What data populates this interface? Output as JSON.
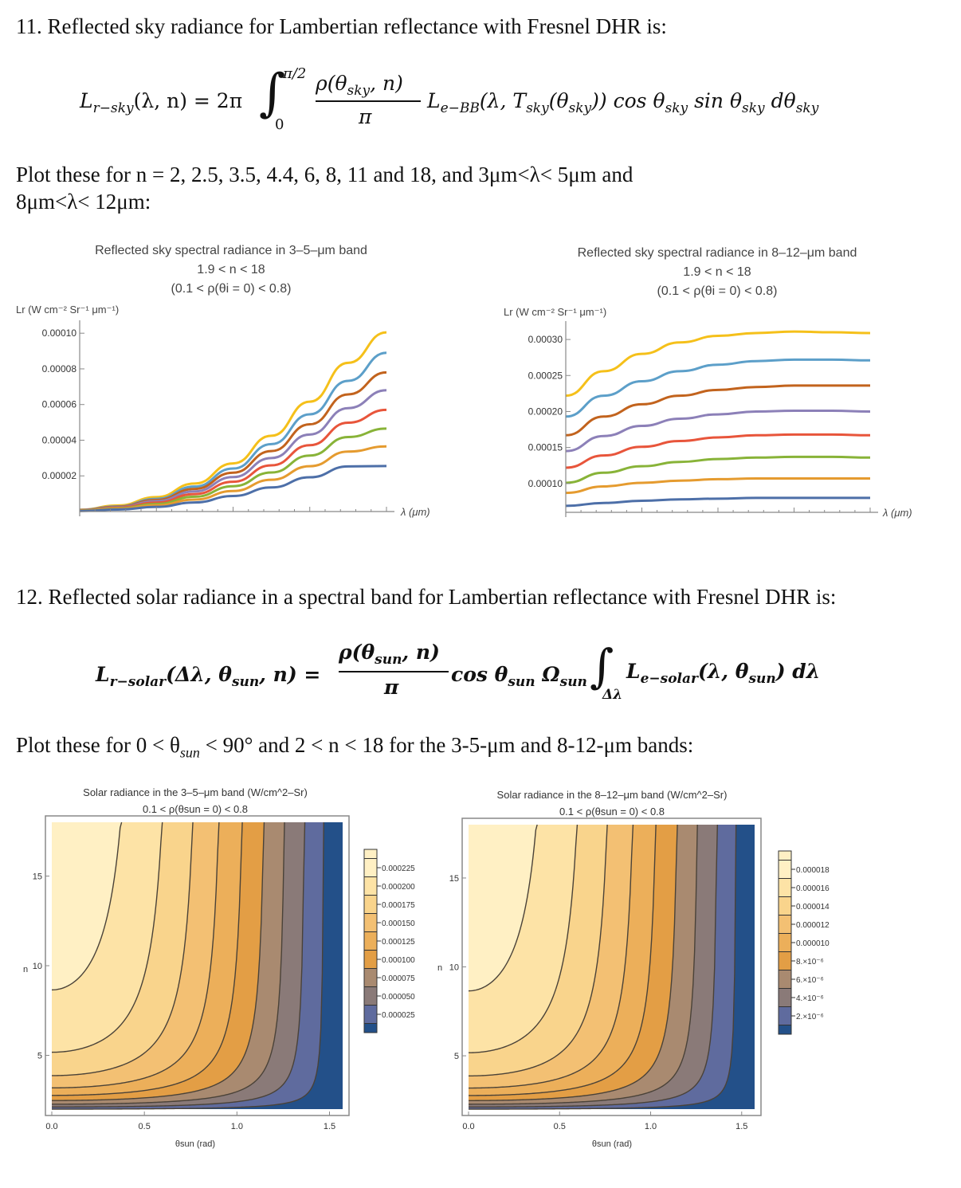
{
  "q11": {
    "heading": "11. Reflected sky radiance for Lambertian reflectance with Fresnel DHR is:",
    "eq": {
      "lhs": "L",
      "lhs_sub": "r−sky",
      "lhs_args": "(λ, n) = 2π",
      "integral": "∫",
      "upper": "π/2",
      "lower": "0",
      "frac_num": "ρ(θ",
      "frac_num_sub": "sky",
      "frac_num_tail": ", n)",
      "frac_den": "π",
      "rest": "L",
      "rest_sub": "e−BB",
      "rest_args": "(λ, T",
      "rest_sub2": "sky",
      "rest_args2": "(θ",
      "rest_sub3": "sky",
      "rest_args3": ")) cos θ",
      "rest_sub4": "sky",
      "rest_args4": " sin θ",
      "rest_sub5": "sky",
      "rest_args5": " dθ",
      "rest_sub6": "sky"
    },
    "instruction_line1": "Plot these for n = 2, 2.5, 3.5, 4.4, 6, 8, 11 and 18, and 3μm<λ< 5μm and",
    "instruction_line2": "8μm<λ< 12μm:"
  },
  "q12": {
    "heading": "12. Reflected solar radiance in a spectral band for Lambertian reflectance with Fresnel DHR is:",
    "eq": {
      "lhs": "L",
      "lhs_sub": "r−solar",
      "lhs_args": "(Δλ, θ",
      "lhs_sub2": "sun",
      "lhs_args2": ", n) =",
      "frac_num": "ρ(θ",
      "frac_num_sub": "sun",
      "frac_num_tail": ", n)",
      "frac_den": "π",
      "mid": "cos θ",
      "mid_sub": "sun",
      "mid2": " Ω",
      "mid_sub2": "sun",
      "integral": "∫",
      "int_sub": "Δλ",
      "rest": "L",
      "rest_sub": "e−solar",
      "rest_args": "(λ, θ",
      "rest_sub2": "sun",
      "rest_args2": ") dλ"
    },
    "instruction_pre": "Plot these for 0 < θ",
    "instruction_sub": "sun",
    "instruction_post": " < 90° and 2 < n < 18 for the 3-5-μm and 8-12-μm bands:"
  },
  "colors": {
    "series": [
      "#f5c01a",
      "#5c9fc9",
      "#c2631d",
      "#8c80b8",
      "#e8553b",
      "#88b338",
      "#e59b2f",
      "#4d6fa8"
    ],
    "contour": [
      "#fff0c4",
      "#fde3a6",
      "#f9d48c",
      "#f3c073",
      "#ecaf5a",
      "#e39e45",
      "#a98a70",
      "#8a7a78",
      "#5f6b9e",
      "#235089"
    ]
  },
  "chart_data": [
    {
      "type": "line",
      "title": "Reflected sky spectral radiance in 3–5–μm band",
      "subtitle1": "1.9 < n < 18",
      "subtitle2": "(0.1 < ρ(θi = 0) < 0.8)",
      "ylabel": "Lr (W cm⁻² Sr⁻¹ μm⁻¹)",
      "xlabel": "λ (μm)",
      "x": [
        3.0,
        3.25,
        3.5,
        3.75,
        4.0,
        4.25,
        4.5,
        4.75,
        5.0
      ],
      "ylim": [
        0,
        0.000105
      ],
      "yticks": [
        "0.00002",
        "0.00004",
        "0.00006",
        "0.00008",
        "0.00010"
      ],
      "ytick_values": [
        2e-05,
        4e-05,
        6e-05,
        8e-05,
        0.0001
      ],
      "series": [
        {
          "values": [
            1e-06,
            3.4e-06,
            8.1e-06,
            1.57e-05,
            2.7e-05,
            4.25e-05,
            6.16e-05,
            8.34e-05,
            0.0001005
          ]
        },
        {
          "values": [
            9e-07,
            2.9e-06,
            7.1e-06,
            1.4e-05,
            2.41e-05,
            3.78e-05,
            5.45e-05,
            7.33e-05,
            8.9e-05
          ]
        },
        {
          "values": [
            8e-07,
            2.7e-06,
            6.5e-06,
            1.27e-05,
            2.18e-05,
            3.39e-05,
            4.89e-05,
            6.57e-05,
            7.8e-05
          ]
        },
        {
          "values": [
            7e-07,
            2.4e-06,
            5.8e-06,
            1.13e-05,
            1.93e-05,
            3e-05,
            4.32e-05,
            5.8e-05,
            6.8e-05
          ]
        },
        {
          "values": [
            6e-07,
            2.1e-06,
            5e-06,
            9.8e-06,
            1.67e-05,
            2.59e-05,
            3.72e-05,
            4.98e-05,
            5.7e-05
          ]
        },
        {
          "values": [
            5e-07,
            1.8e-06,
            4.2e-06,
            8.3e-06,
            1.42e-05,
            2.19e-05,
            3.14e-05,
            4.18e-05,
            4.65e-05
          ]
        },
        {
          "values": [
            4e-07,
            1.5e-06,
            3.5e-06,
            6.7e-06,
            1.15e-05,
            1.78e-05,
            2.54e-05,
            3.36e-05,
            3.65e-05
          ]
        },
        {
          "values": [
            3e-07,
            1.1e-06,
            2.6e-06,
            5.1e-06,
            8.7e-06,
            1.35e-05,
            1.92e-05,
            2.53e-05,
            2.55e-05
          ]
        }
      ]
    },
    {
      "type": "line",
      "title": "Reflected sky spectral radiance in 8–12–μm band",
      "subtitle1": "1.9 < n < 18",
      "subtitle2": "(0.1 < ρ(θi = 0) < 0.8)",
      "ylabel": "Lr (W cm⁻² Sr⁻¹ μm⁻¹)",
      "xlabel": "λ (μm)",
      "x": [
        8.0,
        8.5,
        9.0,
        9.5,
        10.0,
        10.5,
        11.0,
        11.5,
        12.0
      ],
      "ylim": [
        6e-05,
        0.00032
      ],
      "yticks": [
        "0.00010",
        "0.00015",
        "0.00020",
        "0.00025",
        "0.00030"
      ],
      "ytick_values": [
        0.0001,
        0.00015,
        0.0002,
        0.00025,
        0.0003
      ],
      "series": [
        {
          "values": [
            0.000222,
            0.000256,
            0.00028,
            0.000296,
            0.000305,
            0.000309,
            0.000311,
            0.00031,
            0.000309
          ]
        },
        {
          "values": [
            0.000193,
            0.000222,
            0.000242,
            0.000256,
            0.000265,
            0.00027,
            0.000272,
            0.000272,
            0.000271
          ]
        },
        {
          "values": [
            0.000167,
            0.000193,
            0.00021,
            0.000222,
            0.00023,
            0.000234,
            0.000236,
            0.000236,
            0.000236
          ]
        },
        {
          "values": [
            0.000145,
            0.000166,
            0.00018,
            0.00019,
            0.000196,
            0.0002,
            0.000201,
            0.000201,
            0.0002
          ]
        },
        {
          "values": [
            0.000122,
            0.000139,
            0.000151,
            0.000159,
            0.000164,
            0.000167,
            0.000168,
            0.000168,
            0.000167
          ]
        },
        {
          "values": [
            0.000101,
            0.000115,
            0.000124,
            0.00013,
            0.000134,
            0.000136,
            0.000137,
            0.000137,
            0.000136
          ]
        },
        {
          "values": [
            8.7e-05,
            9.6e-05,
            0.000101,
            0.000104,
            0.000106,
            0.000107,
            0.000107,
            0.000107,
            0.000107
          ]
        },
        {
          "values": [
            6.9e-05,
            7.3e-05,
            7.6e-05,
            7.8e-05,
            7.9e-05,
            8e-05,
            8e-05,
            8e-05,
            8e-05
          ]
        }
      ]
    },
    {
      "type": "heatmap",
      "title": "Solar radiance in the 3–5–μm band (W/cm^2–Sr)",
      "subtitle": "0.1 < ρ(θsun = 0) < 0.8",
      "xlabel": "θsun (rad)",
      "ylabel": "n",
      "xlim": [
        0,
        1.571
      ],
      "ylim": [
        2,
        18
      ],
      "xticks": [
        "0.0",
        "0.5",
        "1.0",
        "1.5"
      ],
      "xtick_values": [
        0,
        0.5,
        1.0,
        1.5
      ],
      "yticks": [
        "5",
        "10",
        "15"
      ],
      "ytick_values": [
        5,
        10,
        15
      ],
      "legend_labels": [
        "0.000225",
        "0.000200",
        "0.000175",
        "0.000150",
        "0.000125",
        "0.000100",
        "0.000075",
        "0.000050",
        "0.000025"
      ],
      "levels": [
        2.5e-05,
        5e-05,
        7.5e-05,
        0.0001,
        0.000125,
        0.00015,
        0.000175,
        0.0002,
        0.000225
      ],
      "max_value": 0.000255
    },
    {
      "type": "heatmap",
      "title": "Solar radiance in the 8–12–μm band (W/cm^2–Sr)",
      "subtitle": "0.1 < ρ(θsun = 0) < 0.8",
      "xlabel": "θsun (rad)",
      "ylabel": "n",
      "xlim": [
        0,
        1.571
      ],
      "ylim": [
        2,
        18
      ],
      "xticks": [
        "0.0",
        "0.5",
        "1.0",
        "1.5"
      ],
      "xtick_values": [
        0,
        0.5,
        1.0,
        1.5
      ],
      "yticks": [
        "5",
        "10",
        "15"
      ],
      "ytick_values": [
        5,
        10,
        15
      ],
      "legend_labels": [
        "0.000018",
        "0.000016",
        "0.000014",
        "0.000012",
        "0.000010",
        "8.×10⁻⁶",
        "6.×10⁻⁶",
        "4.×10⁻⁶",
        "2.×10⁻⁶"
      ],
      "levels": [
        2e-06,
        4e-06,
        6e-06,
        8e-06,
        1e-05,
        1.2e-05,
        1.4e-05,
        1.6e-05,
        1.8e-05
      ],
      "max_value": 2.04e-05
    }
  ]
}
